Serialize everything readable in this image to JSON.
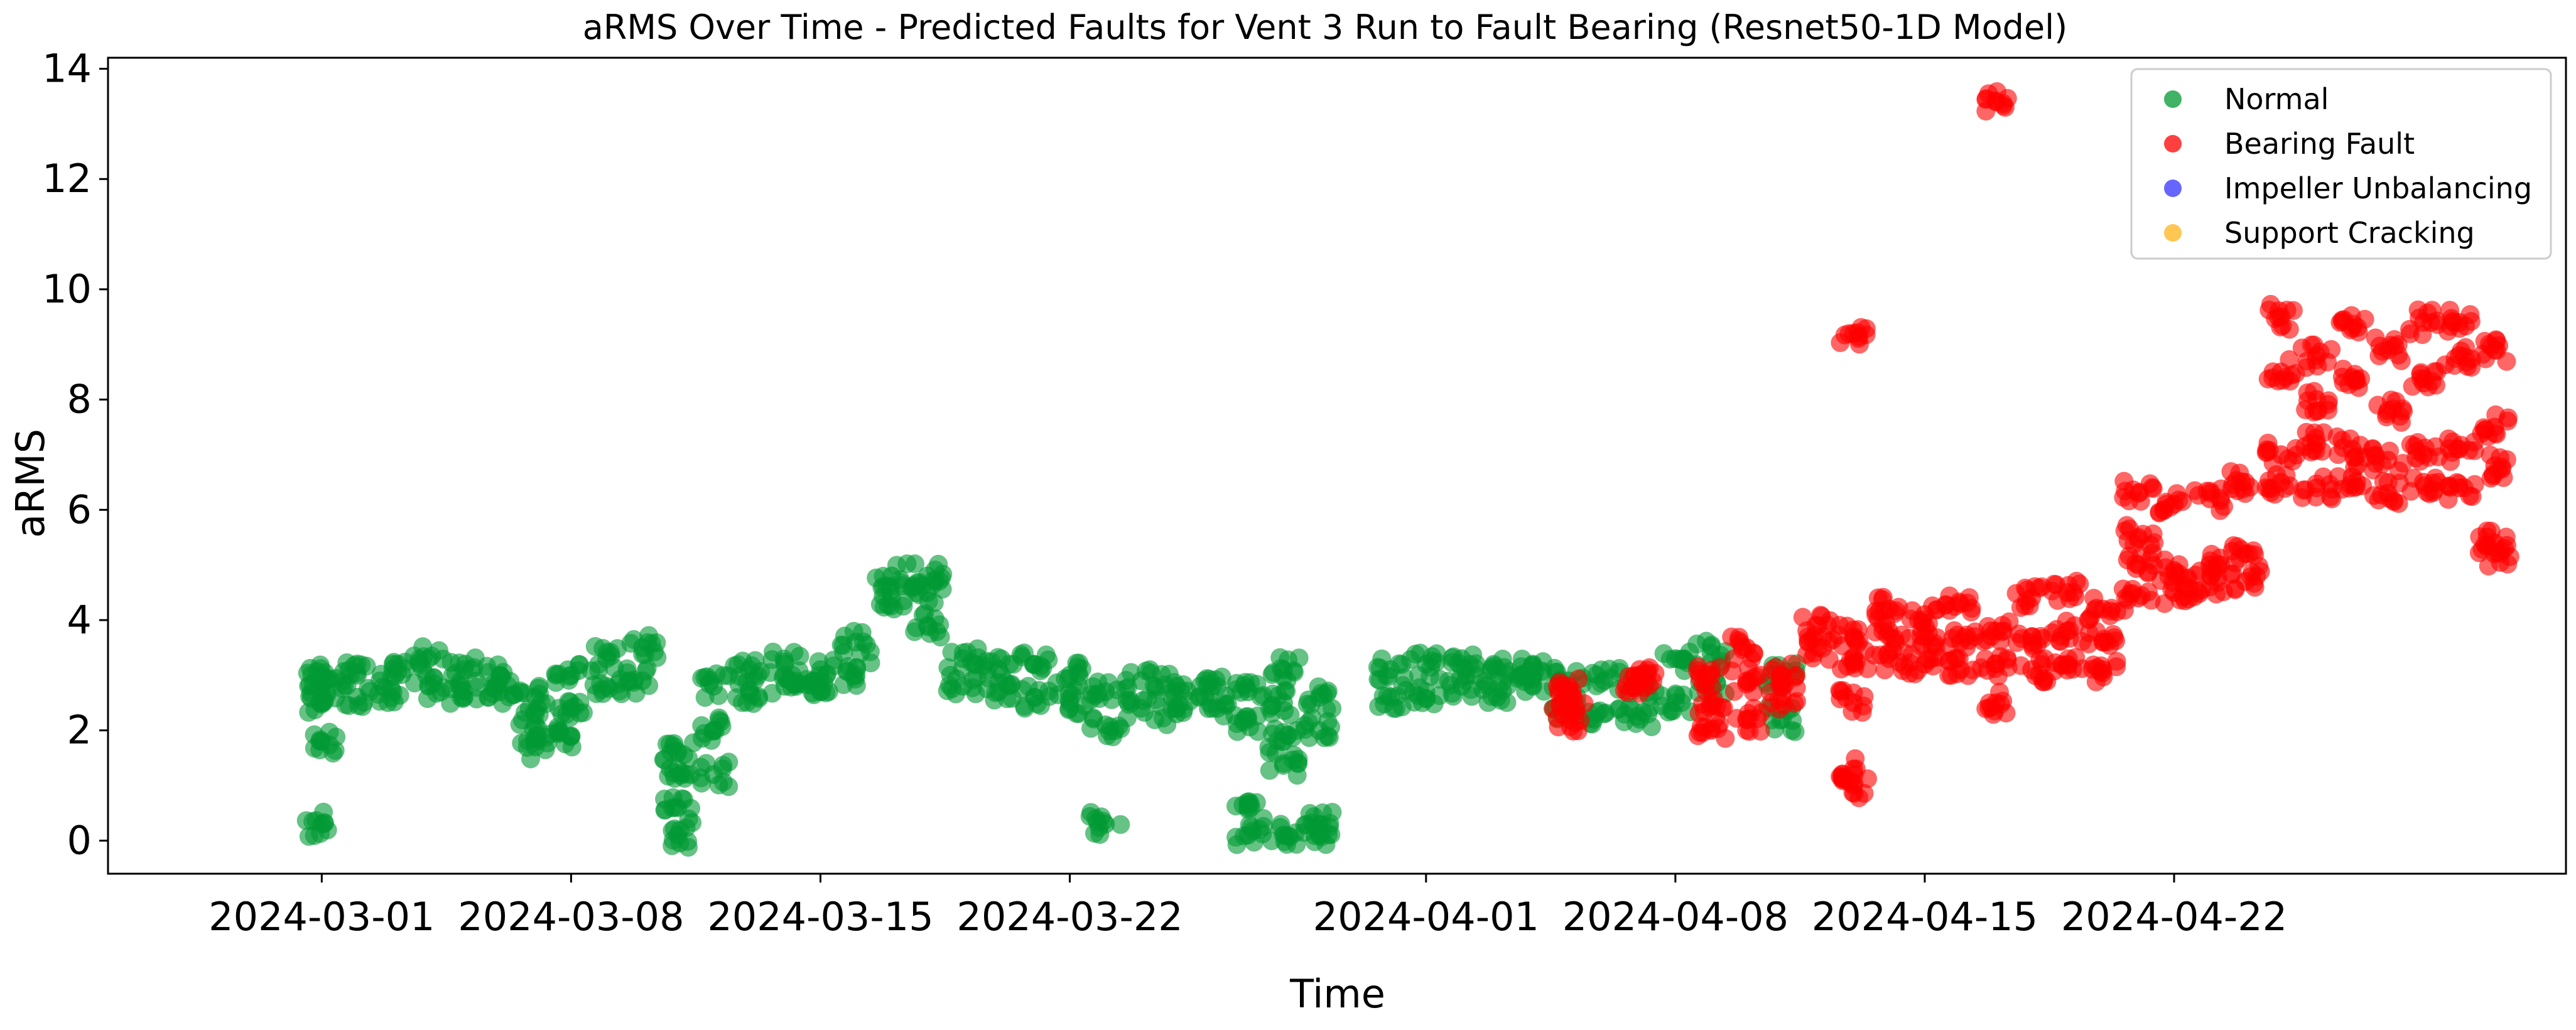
{
  "chart_data": {
    "type": "scatter",
    "title": "aRMS Over Time - Predicted Faults for Vent 3 Run to Fault Bearing (Resnet50-1D Model)",
    "xlabel": "Time",
    "ylabel": "aRMS",
    "xlim": [
      "2024-02-24",
      "2024-05-03"
    ],
    "ylim": [
      -0.6,
      14.2
    ],
    "x_ticks": [
      "2024-03-01",
      "2024-03-08",
      "2024-03-15",
      "2024-03-22",
      "2024-04-01",
      "2024-04-08",
      "2024-04-15",
      "2024-04-22"
    ],
    "y_ticks": [
      0,
      2,
      4,
      6,
      8,
      10,
      12,
      14
    ],
    "grid": false,
    "legend_position": "top-right",
    "series": [
      {
        "name": "Normal",
        "color": "#009933",
        "points": [
          [
            "2024-03-01",
            2.5
          ],
          [
            "2024-03-01",
            2.8
          ],
          [
            "2024-03-01",
            3.0
          ],
          [
            "2024-03-01",
            1.8
          ],
          [
            "2024-03-01",
            0.3
          ],
          [
            "2024-03-02",
            2.6
          ],
          [
            "2024-03-02",
            3.0
          ],
          [
            "2024-03-03",
            2.7
          ],
          [
            "2024-03-03",
            3.2
          ],
          [
            "2024-03-04",
            2.8
          ],
          [
            "2024-03-04",
            3.3
          ],
          [
            "2024-03-05",
            2.6
          ],
          [
            "2024-03-05",
            3.1
          ],
          [
            "2024-03-06",
            2.7
          ],
          [
            "2024-03-06",
            3.0
          ],
          [
            "2024-03-07",
            1.7
          ],
          [
            "2024-03-07",
            2.1
          ],
          [
            "2024-03-07",
            2.6
          ],
          [
            "2024-03-08",
            1.9
          ],
          [
            "2024-03-08",
            2.4
          ],
          [
            "2024-03-08",
            3.0
          ],
          [
            "2024-03-09",
            2.8
          ],
          [
            "2024-03-09",
            3.3
          ],
          [
            "2024-03-10",
            2.9
          ],
          [
            "2024-03-10",
            3.5
          ],
          [
            "2024-03-11",
            0.1
          ],
          [
            "2024-03-11",
            1.6
          ],
          [
            "2024-03-11",
            0.6
          ],
          [
            "2024-03-11",
            1.3
          ],
          [
            "2024-03-12",
            1.2
          ],
          [
            "2024-03-12",
            2.0
          ],
          [
            "2024-03-12",
            2.8
          ],
          [
            "2024-03-13",
            2.7
          ],
          [
            "2024-03-13",
            3.1
          ],
          [
            "2024-03-14",
            2.8
          ],
          [
            "2024-03-14",
            3.2
          ],
          [
            "2024-03-15",
            2.7
          ],
          [
            "2024-03-15",
            3.1
          ],
          [
            "2024-03-16",
            3.0
          ],
          [
            "2024-03-16",
            3.6
          ],
          [
            "2024-03-17",
            4.4
          ],
          [
            "2024-03-17",
            4.8
          ],
          [
            "2024-03-18",
            4.5
          ],
          [
            "2024-03-18",
            4.8
          ],
          [
            "2024-03-18",
            3.9
          ],
          [
            "2024-03-19",
            2.8
          ],
          [
            "2024-03-19",
            3.3
          ],
          [
            "2024-03-20",
            2.7
          ],
          [
            "2024-03-20",
            3.1
          ],
          [
            "2024-03-21",
            2.6
          ],
          [
            "2024-03-21",
            3.2
          ],
          [
            "2024-03-22",
            2.5
          ],
          [
            "2024-03-22",
            3.0
          ],
          [
            "2024-03-23",
            2.1
          ],
          [
            "2024-03-23",
            2.7
          ],
          [
            "2024-03-23",
            0.3
          ],
          [
            "2024-03-24",
            2.4
          ],
          [
            "2024-03-24",
            2.9
          ],
          [
            "2024-03-25",
            2.3
          ],
          [
            "2024-03-25",
            2.8
          ],
          [
            "2024-03-26",
            2.4
          ],
          [
            "2024-03-26",
            2.8
          ],
          [
            "2024-03-27",
            2.2
          ],
          [
            "2024-03-27",
            2.7
          ],
          [
            "2024-03-27",
            0.6
          ],
          [
            "2024-03-27",
            0.1
          ],
          [
            "2024-03-28",
            2.5
          ],
          [
            "2024-03-28",
            3.1
          ],
          [
            "2024-03-28",
            1.8
          ],
          [
            "2024-03-28",
            1.4
          ],
          [
            "2024-03-28",
            0.1
          ],
          [
            "2024-03-29",
            2.0
          ],
          [
            "2024-03-29",
            2.6
          ],
          [
            "2024-03-29",
            0.3
          ],
          [
            "2024-03-29",
            0.1
          ],
          [
            "2024-03-31",
            2.6
          ],
          [
            "2024-03-31",
            3.1
          ],
          [
            "2024-04-01",
            2.7
          ],
          [
            "2024-04-01",
            3.2
          ],
          [
            "2024-04-02",
            2.8
          ],
          [
            "2024-04-02",
            3.3
          ],
          [
            "2024-04-03",
            2.6
          ],
          [
            "2024-04-03",
            3.1
          ],
          [
            "2024-04-04",
            2.8
          ],
          [
            "2024-04-04",
            3.2
          ],
          [
            "2024-04-05",
            2.4
          ],
          [
            "2024-04-05",
            2.9
          ],
          [
            "2024-04-06",
            2.3
          ],
          [
            "2024-04-06",
            2.9
          ],
          [
            "2024-04-07",
            2.2
          ],
          [
            "2024-04-07",
            2.8
          ],
          [
            "2024-04-08",
            2.5
          ],
          [
            "2024-04-08",
            3.3
          ],
          [
            "2024-04-09",
            2.8
          ],
          [
            "2024-04-09",
            3.4
          ],
          [
            "2024-04-11",
            2.2
          ],
          [
            "2024-04-11",
            3.0
          ]
        ]
      },
      {
        "name": "Bearing Fault",
        "color": "#ff0000",
        "points": [
          [
            "2024-04-05",
            2.2
          ],
          [
            "2024-04-05",
            2.5
          ],
          [
            "2024-04-05",
            2.8
          ],
          [
            "2024-04-07",
            2.9
          ],
          [
            "2024-04-07",
            3.0
          ],
          [
            "2024-04-09",
            2.0
          ],
          [
            "2024-04-09",
            2.5
          ],
          [
            "2024-04-09",
            3.0
          ],
          [
            "2024-04-10",
            2.2
          ],
          [
            "2024-04-10",
            2.9
          ],
          [
            "2024-04-10",
            3.5
          ],
          [
            "2024-04-11",
            2.6
          ],
          [
            "2024-04-11",
            3.0
          ],
          [
            "2024-04-12",
            3.5
          ],
          [
            "2024-04-12",
            3.9
          ],
          [
            "2024-04-13",
            3.3
          ],
          [
            "2024-04-13",
            3.7
          ],
          [
            "2024-04-13",
            9.2
          ],
          [
            "2024-04-13",
            1.3
          ],
          [
            "2024-04-13",
            1.0
          ],
          [
            "2024-04-13",
            2.5
          ],
          [
            "2024-04-14",
            3.3
          ],
          [
            "2024-04-14",
            3.8
          ],
          [
            "2024-04-14",
            4.2
          ],
          [
            "2024-04-15",
            3.2
          ],
          [
            "2024-04-15",
            3.7
          ],
          [
            "2024-04-15",
            4.1
          ],
          [
            "2024-04-16",
            3.1
          ],
          [
            "2024-04-16",
            3.6
          ],
          [
            "2024-04-16",
            4.3
          ],
          [
            "2024-04-17",
            13.4
          ],
          [
            "2024-04-17",
            2.5
          ],
          [
            "2024-04-17",
            3.2
          ],
          [
            "2024-04-17",
            3.8
          ],
          [
            "2024-04-18",
            3.1
          ],
          [
            "2024-04-18",
            3.7
          ],
          [
            "2024-04-18",
            4.4
          ],
          [
            "2024-04-19",
            3.2
          ],
          [
            "2024-04-19",
            3.8
          ],
          [
            "2024-04-19",
            4.5
          ],
          [
            "2024-04-20",
            3.1
          ],
          [
            "2024-04-20",
            3.6
          ],
          [
            "2024-04-20",
            4.2
          ],
          [
            "2024-04-21",
            4.4
          ],
          [
            "2024-04-21",
            5.0
          ],
          [
            "2024-04-21",
            5.5
          ],
          [
            "2024-04-21",
            6.3
          ],
          [
            "2024-04-22",
            4.5
          ],
          [
            "2024-04-22",
            4.9
          ],
          [
            "2024-04-22",
            6.1
          ],
          [
            "2024-04-23",
            4.6
          ],
          [
            "2024-04-23",
            5.0
          ],
          [
            "2024-04-23",
            6.2
          ],
          [
            "2024-04-24",
            4.7
          ],
          [
            "2024-04-24",
            5.2
          ],
          [
            "2024-04-24",
            6.5
          ],
          [
            "2024-04-25",
            6.5
          ],
          [
            "2024-04-25",
            7.0
          ],
          [
            "2024-04-25",
            8.5
          ],
          [
            "2024-04-25",
            9.5
          ],
          [
            "2024-04-26",
            6.4
          ],
          [
            "2024-04-26",
            7.2
          ],
          [
            "2024-04-26",
            8.0
          ],
          [
            "2024-04-26",
            8.8
          ],
          [
            "2024-04-27",
            6.6
          ],
          [
            "2024-04-27",
            7.1
          ],
          [
            "2024-04-27",
            8.4
          ],
          [
            "2024-04-27",
            9.3
          ],
          [
            "2024-04-28",
            6.3
          ],
          [
            "2024-04-28",
            6.9
          ],
          [
            "2024-04-28",
            7.8
          ],
          [
            "2024-04-28",
            8.9
          ],
          [
            "2024-04-29",
            6.5
          ],
          [
            "2024-04-29",
            7.0
          ],
          [
            "2024-04-29",
            8.3
          ],
          [
            "2024-04-29",
            9.4
          ],
          [
            "2024-04-30",
            6.4
          ],
          [
            "2024-04-30",
            7.1
          ],
          [
            "2024-04-30",
            8.8
          ],
          [
            "2024-04-30",
            9.4
          ],
          [
            "2024-05-01",
            5.2
          ],
          [
            "2024-05-01",
            5.4
          ],
          [
            "2024-05-01",
            6.8
          ],
          [
            "2024-05-01",
            7.5
          ],
          [
            "2024-05-01",
            8.9
          ]
        ]
      },
      {
        "name": "Impeller Unbalancing",
        "color": "#3333ff",
        "points": []
      },
      {
        "name": "Support Cracking",
        "color": "#ffb31a",
        "points": []
      }
    ]
  }
}
